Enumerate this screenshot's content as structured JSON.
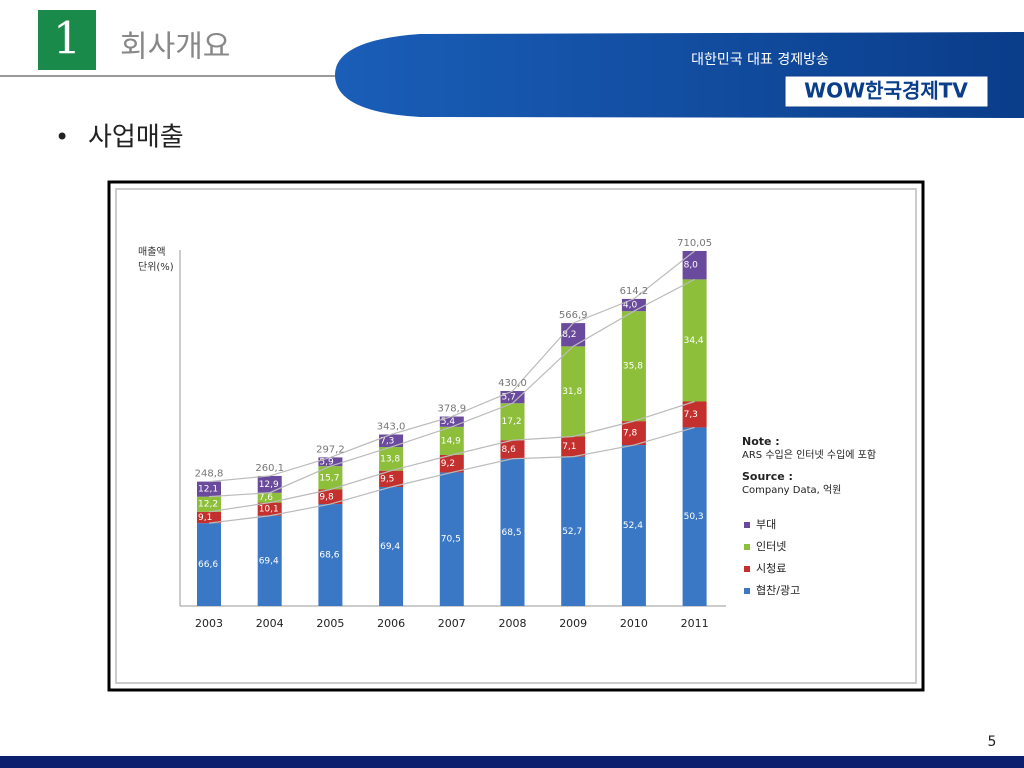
{
  "header": {
    "number": "1",
    "title": "회사개요",
    "tagline": "대한민국 대표 경제방송",
    "logo": "WOW한국경제TV"
  },
  "bullet": "사업매출",
  "page_number": "5",
  "chart_data": {
    "type": "stacked_bar",
    "y_axis_label": "매출액",
    "y_axis_unit": "단위(%)",
    "categories": [
      "2003",
      "2004",
      "2005",
      "2006",
      "2007",
      "2008",
      "2009",
      "2010",
      "2011"
    ],
    "ylim": [
      0,
      720
    ],
    "series": [
      {
        "name": "협찬/광고",
        "color": "#3a78c6",
        "values": [
          66.6,
          69.4,
          68.6,
          69.4,
          70.5,
          68.5,
          52.7,
          52.4,
          50.3
        ],
        "value_labels": [
          "66,6",
          "69,4",
          "68,6",
          "69,4",
          "70,5",
          "68,5",
          "52,7",
          "52,4",
          "50,3"
        ]
      },
      {
        "name": "시청료",
        "color": "#c4302d",
        "values": [
          9.1,
          10.1,
          9.8,
          9.5,
          9.2,
          8.6,
          7.1,
          7.8,
          7.3
        ],
        "value_labels": [
          "9,1",
          "10,1",
          "9,8",
          "9,5",
          "9,2",
          "8,6",
          "7,1",
          "7,8",
          "7,3"
        ]
      },
      {
        "name": "인터넷",
        "color": "#8dbf3b",
        "values": [
          12.2,
          7.6,
          15.7,
          13.8,
          14.9,
          17.2,
          31.8,
          35.8,
          34.4
        ],
        "value_labels": [
          "12,2",
          "7,6",
          "15,7",
          "13,8",
          "14,9",
          "17,2",
          "31,8",
          "35,8",
          "34,4"
        ]
      },
      {
        "name": "부대",
        "color": "#6a4a9c",
        "values": [
          12.1,
          12.9,
          5.9,
          7.3,
          5.4,
          5.7,
          8.2,
          4.0,
          8.0
        ],
        "value_labels": [
          "12,1",
          "12,9",
          "5,9",
          "7,3",
          "5,4",
          "5,7",
          "8,2",
          "4,0",
          "8,0"
        ]
      }
    ],
    "totals": {
      "values": [
        248.8,
        260.1,
        297.2,
        343.0,
        378.9,
        430.0,
        566.9,
        614.2,
        710.05
      ],
      "value_labels": [
        "248,8",
        "260,1",
        "297,2",
        "343,0",
        "378,9",
        "430,0",
        "566,9",
        "614,2",
        "710,05"
      ]
    },
    "notes": [
      {
        "heading": "Note :",
        "text": "ARS 수입은 인터넷 수입에 포함"
      },
      {
        "heading": "Source :",
        "text": "Company Data, 억원"
      }
    ]
  }
}
